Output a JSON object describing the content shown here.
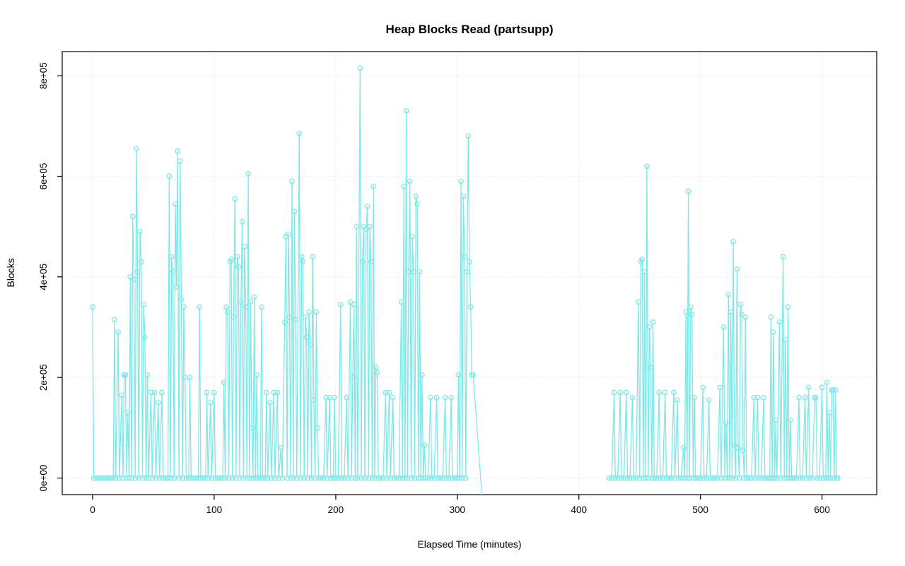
{
  "chart_data": {
    "type": "line",
    "title": "Heap Blocks Read (partsupp)",
    "xlabel": "Elapsed Time (minutes)",
    "ylabel": "Blocks",
    "marker": "open-circle",
    "series_color": "#7DE8E8",
    "grid_color": "#D6D6D6",
    "axis_color": "#000000",
    "grid_style": "dotted",
    "legend": "none",
    "xlim": [
      -25,
      645
    ],
    "ylim": [
      -33000,
      848000
    ],
    "xticks": [
      0,
      100,
      200,
      300,
      400,
      500,
      600
    ],
    "xtick_labels": [
      "0",
      "100",
      "200",
      "300",
      "400",
      "500",
      "600"
    ],
    "yticks": [
      0,
      200000,
      400000,
      600000,
      800000
    ],
    "ytick_labels": [
      "0e+00",
      "2e+05",
      "4e+05",
      "6e+05",
      "8e+05"
    ],
    "y_value_unit": 1000,
    "segments": [
      [
        [
          0,
          340
        ],
        [
          1,
          0
        ],
        [
          3,
          0
        ],
        [
          5,
          0
        ],
        [
          7,
          0
        ],
        [
          9,
          0
        ],
        [
          11,
          0
        ],
        [
          13,
          0
        ],
        [
          15,
          0
        ],
        [
          17,
          0
        ],
        [
          18,
          315
        ],
        [
          19,
          0
        ],
        [
          21,
          290
        ],
        [
          22,
          0
        ],
        [
          24,
          165
        ],
        [
          25,
          0
        ],
        [
          26,
          205
        ],
        [
          27,
          205
        ],
        [
          28,
          0
        ],
        [
          29,
          130
        ],
        [
          30,
          0
        ],
        [
          31,
          400
        ],
        [
          32,
          0
        ],
        [
          33,
          520
        ],
        [
          34,
          395
        ],
        [
          35,
          0
        ],
        [
          36,
          655
        ],
        [
          37,
          410
        ],
        [
          38,
          0
        ],
        [
          39,
          490
        ],
        [
          40,
          430
        ],
        [
          41,
          0
        ],
        [
          42,
          345
        ],
        [
          43,
          280
        ],
        [
          44,
          0
        ],
        [
          45,
          205
        ],
        [
          46,
          0
        ],
        [
          48,
          170
        ],
        [
          49,
          0
        ],
        [
          51,
          170
        ],
        [
          52,
          0
        ],
        [
          54,
          150
        ],
        [
          55,
          0
        ],
        [
          57,
          170
        ],
        [
          58,
          0
        ],
        [
          60,
          0
        ],
        [
          62,
          0
        ],
        [
          63,
          600
        ],
        [
          64,
          0
        ],
        [
          65,
          440
        ],
        [
          66,
          410
        ],
        [
          67,
          0
        ],
        [
          68,
          545
        ],
        [
          69,
          380
        ],
        [
          70,
          650
        ],
        [
          71,
          0
        ],
        [
          72,
          630
        ],
        [
          73,
          355
        ],
        [
          74,
          0
        ],
        [
          75,
          340
        ],
        [
          76,
          200
        ],
        [
          77,
          0
        ],
        [
          79,
          0
        ],
        [
          80,
          200
        ],
        [
          81,
          0
        ],
        [
          83,
          0
        ],
        [
          85,
          0
        ],
        [
          87,
          0
        ],
        [
          88,
          340
        ],
        [
          89,
          0
        ],
        [
          91,
          0
        ],
        [
          93,
          0
        ],
        [
          94,
          170
        ],
        [
          95,
          0
        ],
        [
          97,
          150
        ],
        [
          98,
          0
        ],
        [
          100,
          170
        ],
        [
          101,
          0
        ],
        [
          103,
          0
        ],
        [
          105,
          0
        ],
        [
          107,
          0
        ],
        [
          108,
          190
        ],
        [
          109,
          0
        ],
        [
          110,
          340
        ],
        [
          111,
          330
        ],
        [
          112,
          0
        ],
        [
          113,
          430
        ],
        [
          114,
          435
        ],
        [
          115,
          0
        ],
        [
          116,
          320
        ],
        [
          117,
          555
        ],
        [
          118,
          0
        ],
        [
          119,
          440
        ],
        [
          120,
          420
        ],
        [
          121,
          0
        ],
        [
          122,
          350
        ],
        [
          123,
          510
        ],
        [
          124,
          0
        ],
        [
          125,
          460
        ],
        [
          126,
          340
        ],
        [
          127,
          0
        ],
        [
          128,
          605
        ],
        [
          129,
          0
        ],
        [
          130,
          350
        ],
        [
          131,
          100
        ],
        [
          132,
          0
        ],
        [
          133,
          360
        ],
        [
          134,
          0
        ],
        [
          135,
          205
        ],
        [
          136,
          0
        ],
        [
          138,
          0
        ],
        [
          139,
          340
        ],
        [
          140,
          0
        ],
        [
          142,
          0
        ],
        [
          143,
          170
        ],
        [
          144,
          0
        ],
        [
          146,
          150
        ],
        [
          147,
          0
        ],
        [
          149,
          170
        ],
        [
          150,
          0
        ],
        [
          152,
          170
        ],
        [
          153,
          0
        ],
        [
          155,
          60
        ],
        [
          156,
          0
        ],
        [
          158,
          310
        ],
        [
          159,
          480
        ],
        [
          160,
          0
        ],
        [
          161,
          485
        ],
        [
          162,
          320
        ],
        [
          163,
          0
        ],
        [
          164,
          590
        ],
        [
          165,
          0
        ],
        [
          166,
          530
        ],
        [
          167,
          315
        ],
        [
          168,
          0
        ],
        [
          170,
          685
        ],
        [
          171,
          0
        ],
        [
          172,
          440
        ],
        [
          173,
          430
        ],
        [
          174,
          0
        ],
        [
          175,
          320
        ],
        [
          176,
          280
        ],
        [
          177,
          0
        ],
        [
          178,
          330
        ],
        [
          179,
          265
        ],
        [
          180,
          0
        ],
        [
          181,
          440
        ],
        [
          182,
          155
        ],
        [
          183,
          0
        ],
        [
          184,
          330
        ],
        [
          185,
          100
        ],
        [
          186,
          0
        ],
        [
          188,
          0
        ],
        [
          190,
          0
        ],
        [
          192,
          160
        ],
        [
          193,
          0
        ],
        [
          195,
          160
        ],
        [
          196,
          0
        ],
        [
          198,
          0
        ],
        [
          199,
          160
        ],
        [
          200,
          0
        ],
        [
          202,
          0
        ],
        [
          204,
          345
        ],
        [
          205,
          0
        ],
        [
          207,
          0
        ],
        [
          209,
          160
        ],
        [
          210,
          0
        ],
        [
          212,
          350
        ],
        [
          213,
          0
        ],
        [
          214,
          200
        ],
        [
          215,
          345
        ],
        [
          216,
          0
        ],
        [
          217,
          500
        ],
        [
          218,
          0
        ],
        [
          220,
          815
        ],
        [
          221,
          0
        ],
        [
          222,
          430
        ],
        [
          223,
          500
        ],
        [
          224,
          0
        ],
        [
          225,
          495
        ],
        [
          226,
          540
        ],
        [
          227,
          0
        ],
        [
          228,
          500
        ],
        [
          229,
          430
        ],
        [
          230,
          0
        ],
        [
          231,
          580
        ],
        [
          232,
          0
        ],
        [
          233,
          220
        ],
        [
          234,
          210
        ],
        [
          235,
          0
        ],
        [
          237,
          0
        ],
        [
          239,
          0
        ],
        [
          241,
          170
        ],
        [
          242,
          0
        ],
        [
          244,
          170
        ],
        [
          245,
          0
        ],
        [
          247,
          160
        ],
        [
          248,
          0
        ],
        [
          250,
          0
        ],
        [
          252,
          0
        ],
        [
          254,
          350
        ],
        [
          255,
          0
        ],
        [
          256,
          580
        ],
        [
          257,
          0
        ],
        [
          258,
          730
        ],
        [
          259,
          0
        ],
        [
          260,
          410
        ],
        [
          261,
          590
        ],
        [
          262,
          0
        ],
        [
          263,
          480
        ],
        [
          264,
          410
        ],
        [
          265,
          0
        ],
        [
          266,
          560
        ],
        [
          267,
          545
        ],
        [
          268,
          0
        ],
        [
          269,
          410
        ],
        [
          270,
          0
        ],
        [
          271,
          205
        ],
        [
          272,
          0
        ],
        [
          273,
          65
        ],
        [
          274,
          0
        ],
        [
          276,
          0
        ],
        [
          278,
          160
        ],
        [
          279,
          0
        ],
        [
          281,
          0
        ],
        [
          283,
          160
        ],
        [
          284,
          0
        ],
        [
          286,
          0
        ],
        [
          288,
          0
        ],
        [
          290,
          160
        ],
        [
          291,
          0
        ],
        [
          293,
          0
        ],
        [
          295,
          160
        ],
        [
          296,
          0
        ],
        [
          298,
          0
        ],
        [
          300,
          0
        ],
        [
          301,
          205
        ],
        [
          302,
          0
        ],
        [
          303,
          590
        ],
        [
          304,
          0
        ],
        [
          305,
          560
        ],
        [
          306,
          440
        ],
        [
          307,
          0
        ],
        [
          308,
          410
        ],
        [
          309,
          680
        ],
        [
          310,
          430
        ],
        [
          311,
          340
        ],
        [
          312,
          205
        ],
        [
          313,
          205
        ],
        [
          321,
          -60
        ]
      ],
      [
        [
          425,
          0
        ],
        [
          427,
          0
        ],
        [
          429,
          170
        ],
        [
          430,
          0
        ],
        [
          432,
          0
        ],
        [
          434,
          170
        ],
        [
          435,
          0
        ],
        [
          437,
          0
        ],
        [
          439,
          170
        ],
        [
          440,
          0
        ],
        [
          442,
          0
        ],
        [
          444,
          160
        ],
        [
          445,
          0
        ],
        [
          447,
          0
        ],
        [
          449,
          350
        ],
        [
          450,
          0
        ],
        [
          451,
          430
        ],
        [
          452,
          435
        ],
        [
          453,
          0
        ],
        [
          454,
          410
        ],
        [
          455,
          0
        ],
        [
          456,
          620
        ],
        [
          457,
          0
        ],
        [
          458,
          300
        ],
        [
          459,
          220
        ],
        [
          460,
          0
        ],
        [
          461,
          310
        ],
        [
          462,
          0
        ],
        [
          464,
          0
        ],
        [
          466,
          170
        ],
        [
          467,
          0
        ],
        [
          469,
          0
        ],
        [
          471,
          170
        ],
        [
          472,
          0
        ],
        [
          474,
          0
        ],
        [
          476,
          0
        ],
        [
          478,
          170
        ],
        [
          479,
          0
        ],
        [
          481,
          155
        ],
        [
          482,
          0
        ],
        [
          484,
          0
        ],
        [
          486,
          60
        ],
        [
          487,
          0
        ],
        [
          488,
          330
        ],
        [
          489,
          0
        ],
        [
          490,
          570
        ],
        [
          491,
          0
        ],
        [
          492,
          340
        ],
        [
          493,
          325
        ],
        [
          494,
          0
        ],
        [
          495,
          160
        ],
        [
          496,
          0
        ],
        [
          498,
          0
        ],
        [
          500,
          0
        ],
        [
          502,
          180
        ],
        [
          503,
          0
        ],
        [
          505,
          0
        ],
        [
          507,
          155
        ],
        [
          508,
          0
        ],
        [
          510,
          0
        ],
        [
          512,
          0
        ],
        [
          514,
          0
        ],
        [
          516,
          180
        ],
        [
          517,
          0
        ],
        [
          519,
          300
        ],
        [
          520,
          0
        ],
        [
          521,
          110
        ],
        [
          522,
          0
        ],
        [
          523,
          365
        ],
        [
          524,
          0
        ],
        [
          525,
          330
        ],
        [
          526,
          0
        ],
        [
          527,
          470
        ],
        [
          528,
          65
        ],
        [
          529,
          0
        ],
        [
          530,
          415
        ],
        [
          531,
          60
        ],
        [
          532,
          0
        ],
        [
          533,
          345
        ],
        [
          534,
          325
        ],
        [
          535,
          55
        ],
        [
          536,
          0
        ],
        [
          537,
          320
        ],
        [
          538,
          0
        ],
        [
          540,
          0
        ],
        [
          542,
          0
        ],
        [
          544,
          160
        ],
        [
          545,
          0
        ],
        [
          547,
          160
        ],
        [
          548,
          0
        ],
        [
          550,
          0
        ],
        [
          552,
          160
        ],
        [
          553,
          0
        ],
        [
          555,
          0
        ],
        [
          557,
          0
        ],
        [
          558,
          320
        ],
        [
          559,
          0
        ],
        [
          560,
          290
        ],
        [
          561,
          0
        ],
        [
          562,
          115
        ],
        [
          563,
          0
        ],
        [
          565,
          310
        ],
        [
          566,
          0
        ],
        [
          568,
          440
        ],
        [
          569,
          0
        ],
        [
          570,
          275
        ],
        [
          571,
          0
        ],
        [
          572,
          340
        ],
        [
          573,
          0
        ],
        [
          574,
          115
        ],
        [
          575,
          0
        ],
        [
          577,
          0
        ],
        [
          579,
          0
        ],
        [
          581,
          160
        ],
        [
          582,
          0
        ],
        [
          584,
          0
        ],
        [
          586,
          160
        ],
        [
          587,
          0
        ],
        [
          589,
          180
        ],
        [
          590,
          0
        ],
        [
          592,
          0
        ],
        [
          594,
          160
        ],
        [
          595,
          160
        ],
        [
          596,
          0
        ],
        [
          598,
          0
        ],
        [
          600,
          180
        ],
        [
          601,
          0
        ],
        [
          603,
          0
        ],
        [
          604,
          190
        ],
        [
          605,
          0
        ],
        [
          606,
          130
        ],
        [
          607,
          0
        ],
        [
          608,
          175
        ],
        [
          609,
          175
        ],
        [
          610,
          0
        ],
        [
          611,
          175
        ],
        [
          612,
          0
        ],
        [
          613,
          0
        ]
      ]
    ]
  }
}
